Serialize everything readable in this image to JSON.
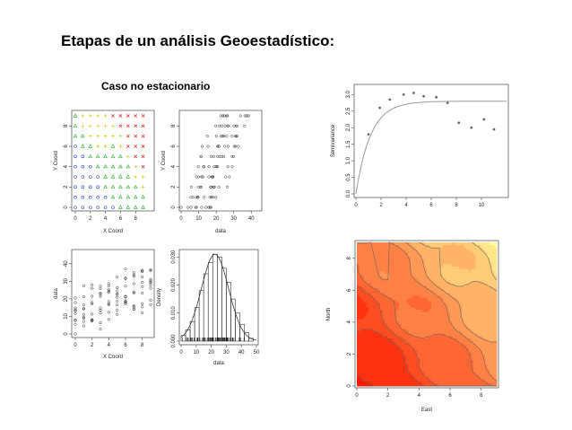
{
  "slide": {
    "title": "Etapas de un análisis Geoestadístico:",
    "subtitle": "Caso no estacionario"
  },
  "colors": {
    "title_text": "#000000",
    "points": "#333333",
    "variogram_model": "#999999",
    "contour_line": "#666666",
    "map_low": "#ff1a00",
    "map_high": "#ffff99"
  },
  "chart_data": [
    {
      "id": "grid-locations",
      "type": "scatter",
      "xlabel": "X Coord",
      "ylabel": "Y Coord",
      "xlim": [
        0,
        10
      ],
      "ylim": [
        0,
        9
      ],
      "xticks": [
        "0",
        "2",
        "4",
        "6",
        "8"
      ],
      "yticks": [
        "0",
        "2",
        "4",
        "6",
        "8"
      ],
      "grid_x": [
        0,
        1,
        2,
        3,
        4,
        5,
        6,
        7,
        8,
        9
      ],
      "grid_y": [
        0,
        1,
        2,
        3,
        4,
        5,
        6,
        7,
        8,
        9
      ],
      "note": "point symbol varies by data quantile: o (low), triangle, plus, x (high)"
    },
    {
      "id": "ycoord-vs-data",
      "type": "scatter",
      "xlabel": "data",
      "ylabel": "Y Coord",
      "xlim": [
        0,
        45
      ],
      "ylim": [
        0,
        9
      ],
      "xticks": [
        "0",
        "10",
        "20",
        "30",
        "40"
      ],
      "yticks": [
        "0",
        "2",
        "4",
        "6",
        "8"
      ]
    },
    {
      "id": "data-vs-xcoord",
      "type": "scatter",
      "xlabel": "X Coord",
      "ylabel": "data",
      "xlim": [
        0,
        9
      ],
      "ylim": [
        0,
        45
      ],
      "xticks": [
        "0",
        "2",
        "4",
        "6",
        "8"
      ],
      "yticks": [
        "0",
        "10",
        "20",
        "30",
        "40"
      ]
    },
    {
      "id": "histogram-density",
      "type": "bar",
      "xlabel": "data",
      "ylabel": "Density",
      "xlim": [
        0,
        50
      ],
      "ylim": [
        0,
        0.032
      ],
      "xticks": [
        "0",
        "10",
        "20",
        "30",
        "40",
        "50"
      ],
      "yticks": [
        "0.000",
        "0.010",
        "0.020",
        "0.030"
      ],
      "bin_edges": [
        0,
        3,
        6,
        9,
        12,
        15,
        18,
        21,
        24,
        27,
        30,
        33,
        36,
        39,
        42,
        45,
        48
      ],
      "values": [
        0.002,
        0.004,
        0.007,
        0.012,
        0.018,
        0.024,
        0.028,
        0.031,
        0.03,
        0.026,
        0.021,
        0.015,
        0.01,
        0.006,
        0.003,
        0.001
      ],
      "density_curve": true,
      "rug": true
    },
    {
      "id": "semivariogram",
      "type": "scatter",
      "xlabel": "",
      "ylabel": "Semivariance",
      "xlim": [
        0,
        12
      ],
      "ylim": [
        0,
        3.2
      ],
      "xticks": [
        "0",
        "2",
        "4",
        "6",
        "8",
        "10"
      ],
      "yticks": [
        "0.0",
        "0.5",
        "1.0",
        "1.5",
        "2.0",
        "2.5",
        "3.0"
      ],
      "points": {
        "x": [
          1.0,
          1.9,
          2.7,
          3.8,
          4.6,
          5.4,
          6.4,
          7.3,
          8.2,
          9.2,
          10.2,
          11.0
        ],
        "y": [
          1.8,
          2.6,
          2.85,
          3.0,
          3.05,
          2.95,
          2.92,
          2.75,
          2.15,
          2.0,
          2.25,
          1.95
        ]
      },
      "model": {
        "nugget": 0.0,
        "sill": 2.8,
        "range": 3.5,
        "form": "exponential"
      }
    },
    {
      "id": "kriging-map",
      "type": "heatmap",
      "xlabel": "East",
      "ylabel": "North",
      "xlim": [
        0,
        9
      ],
      "ylim": [
        0,
        9
      ],
      "xticks": [
        "0",
        "2",
        "4",
        "6",
        "8"
      ],
      "yticks": [
        "0",
        "2",
        "4",
        "6",
        "8"
      ],
      "surface": "increasing toward north-east",
      "contours": true
    }
  ]
}
